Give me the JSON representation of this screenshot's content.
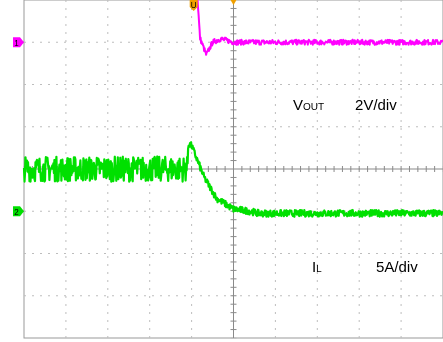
{
  "chart_data": {
    "type": "line",
    "title": "",
    "xlabel": "",
    "ylabel": "",
    "grid": true,
    "grid_divisions": {
      "x": 10,
      "y": 8
    },
    "legend": "inline-right",
    "markers": {
      "trigger_marker": "U",
      "ch_vout_ground": "1",
      "ch_il_ground": "2"
    },
    "series": [
      {
        "name": "VOUT",
        "name_main": "V",
        "name_sub": "OUT",
        "scale": "2V/div",
        "color": "#ff00ff",
        "baseline_div": 3.0,
        "x_div": [
          0.0,
          4.05,
          4.2,
          4.35,
          4.5,
          4.7,
          5.0,
          10.0
        ],
        "y_div": [
          5.5,
          5.5,
          3.1,
          2.7,
          3.0,
          3.08,
          3.0,
          3.0
        ]
      },
      {
        "name": "IL",
        "name_main": "I",
        "name_sub": "L",
        "scale": "5A/div",
        "color": "#00e000",
        "baseline_div": -1.0,
        "x_div": [
          0.0,
          3.9,
          3.92,
          4.0,
          4.3,
          4.6,
          5.0,
          5.4,
          5.6,
          10.0
        ],
        "y_div": [
          0.0,
          0.0,
          0.6,
          0.55,
          -0.2,
          -0.7,
          -0.95,
          -1.0,
          -1.05,
          -1.05
        ]
      }
    ]
  }
}
